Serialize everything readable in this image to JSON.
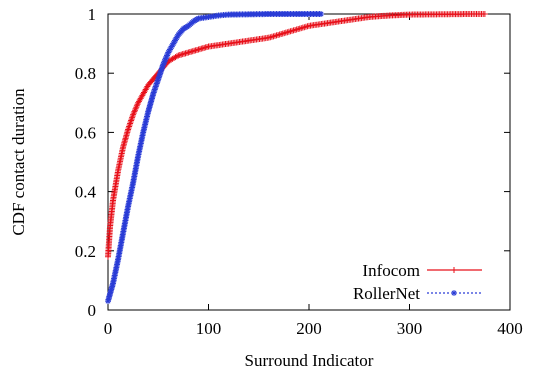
{
  "chart_data": {
    "type": "line",
    "xlabel": "Surround Indicator",
    "ylabel": "CDF contact duration",
    "xlim": [
      0,
      400
    ],
    "ylim": [
      0,
      1
    ],
    "xticks": [
      0,
      100,
      200,
      300,
      400
    ],
    "yticks": [
      0,
      0.2,
      0.4,
      0.6,
      0.8,
      1
    ],
    "xtick_labels": [
      "0",
      "100",
      "200",
      "300",
      "400"
    ],
    "ytick_labels": [
      "0",
      "0.2",
      "0.4",
      "0.6",
      "0.8",
      "1"
    ],
    "grid": false,
    "legend_position": "bottom-right",
    "series": [
      {
        "name": "Infocom",
        "color": "#e8101a",
        "marker": "plus",
        "line": "solid",
        "points": [
          [
            0,
            0.18
          ],
          [
            2,
            0.28
          ],
          [
            5,
            0.37
          ],
          [
            10,
            0.47
          ],
          [
            15,
            0.55
          ],
          [
            20,
            0.61
          ],
          [
            25,
            0.66
          ],
          [
            30,
            0.7
          ],
          [
            35,
            0.73
          ],
          [
            40,
            0.76
          ],
          [
            45,
            0.78
          ],
          [
            50,
            0.8
          ],
          [
            55,
            0.82
          ],
          [
            60,
            0.84
          ],
          [
            70,
            0.86
          ],
          [
            80,
            0.87
          ],
          [
            90,
            0.88
          ],
          [
            100,
            0.89
          ],
          [
            120,
            0.9
          ],
          [
            140,
            0.91
          ],
          [
            160,
            0.92
          ],
          [
            180,
            0.94
          ],
          [
            200,
            0.96
          ],
          [
            220,
            0.97
          ],
          [
            240,
            0.98
          ],
          [
            260,
            0.99
          ],
          [
            280,
            0.995
          ],
          [
            300,
            0.998
          ],
          [
            330,
            0.999
          ],
          [
            360,
            1.0
          ],
          [
            375,
            1.0
          ]
        ]
      },
      {
        "name": "RollerNet",
        "color": "#2a3cd6",
        "marker": "asterisk",
        "line": "dotted",
        "points": [
          [
            0,
            0.03
          ],
          [
            5,
            0.09
          ],
          [
            10,
            0.17
          ],
          [
            15,
            0.26
          ],
          [
            20,
            0.35
          ],
          [
            25,
            0.43
          ],
          [
            30,
            0.52
          ],
          [
            35,
            0.6
          ],
          [
            40,
            0.67
          ],
          [
            45,
            0.73
          ],
          [
            50,
            0.78
          ],
          [
            55,
            0.83
          ],
          [
            60,
            0.87
          ],
          [
            65,
            0.9
          ],
          [
            70,
            0.93
          ],
          [
            75,
            0.95
          ],
          [
            80,
            0.96
          ],
          [
            85,
            0.975
          ],
          [
            90,
            0.985
          ],
          [
            100,
            0.99
          ],
          [
            110,
            0.995
          ],
          [
            120,
            0.998
          ],
          [
            140,
            0.999
          ],
          [
            160,
            1.0
          ],
          [
            180,
            1.0
          ],
          [
            200,
            1.0
          ],
          [
            212,
            1.0
          ]
        ]
      }
    ]
  }
}
